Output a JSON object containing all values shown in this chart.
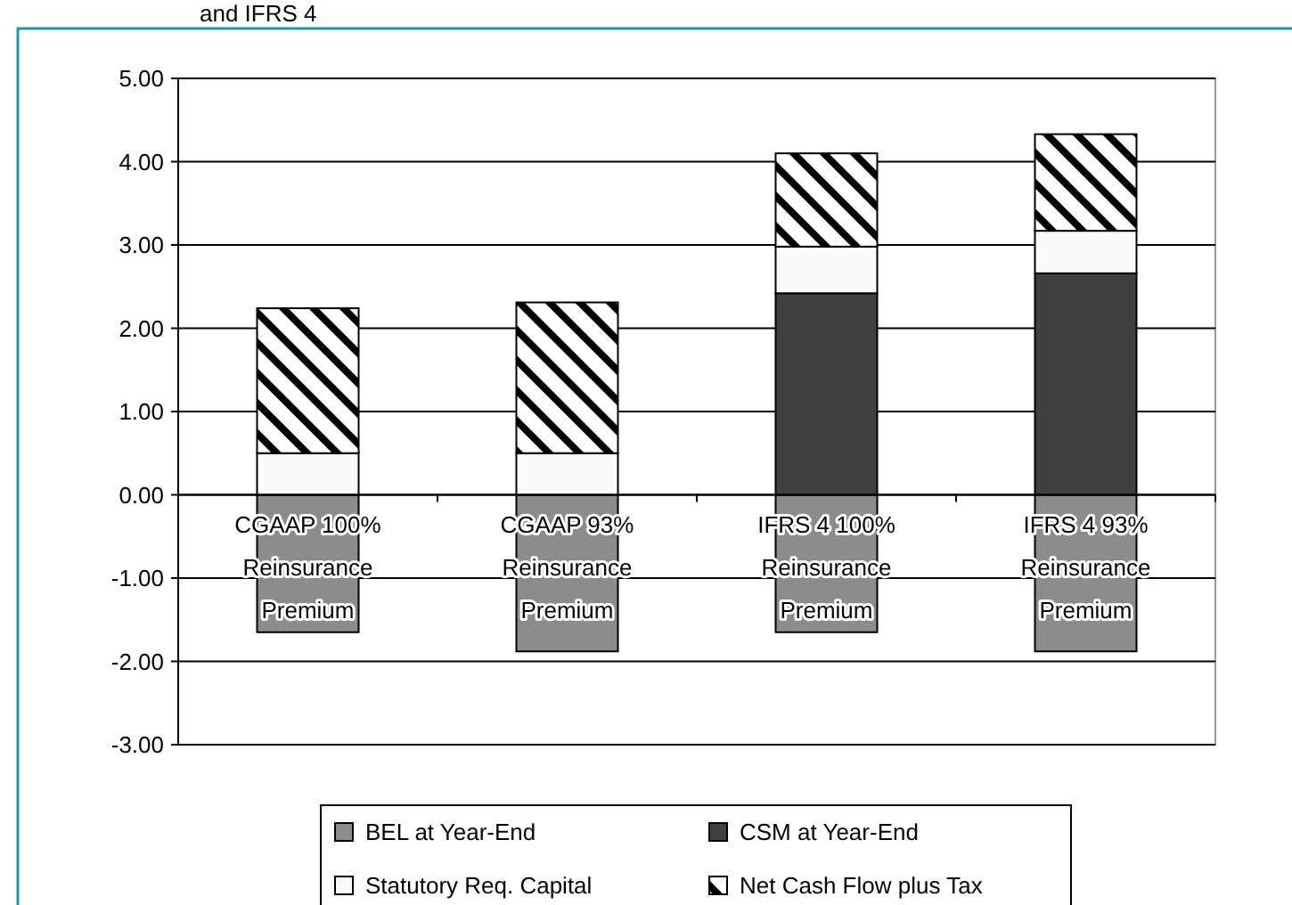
{
  "chart_data": {
    "type": "bar",
    "title": "and IFRS 4",
    "stacked": true,
    "categories": [
      "CGAAP 100% Reinsurance Premium",
      "CGAAP 93% Reinsurance Premium",
      "IFRS 4 100% Reinsurance Premium",
      "IFRS 4 93% Reinsurance Premium"
    ],
    "series": [
      {
        "name": "BEL at Year-End",
        "color": "#8c8c8c",
        "values": [
          -1.65,
          -1.88,
          -1.65,
          -1.88
        ]
      },
      {
        "name": "CSM at Year-End",
        "color": "#404040",
        "values": [
          0,
          0,
          2.42,
          2.66
        ]
      },
      {
        "name": "Statutory Req. Capital",
        "color": "#fafafa",
        "values": [
          0.5,
          0.5,
          0.56,
          0.51
        ]
      },
      {
        "name": "Net Cash Flow plus Tax",
        "color": "#000000",
        "values": [
          1.74,
          1.81,
          1.12,
          1.16
        ]
      }
    ],
    "ylim": [
      -3,
      5
    ],
    "yticks": [
      {
        "value": -3,
        "label": "-3.00"
      },
      {
        "value": -2,
        "label": "-2.00"
      },
      {
        "value": -1,
        "label": "-1.00"
      },
      {
        "value": 0,
        "label": "0.00"
      },
      {
        "value": 1,
        "label": "1.00"
      },
      {
        "value": 2,
        "label": "2.00"
      },
      {
        "value": 3,
        "label": "3.00"
      },
      {
        "value": 4,
        "label": "4.00"
      },
      {
        "value": 5,
        "label": "5.00"
      }
    ],
    "grid": "y",
    "legend": "bottom"
  }
}
